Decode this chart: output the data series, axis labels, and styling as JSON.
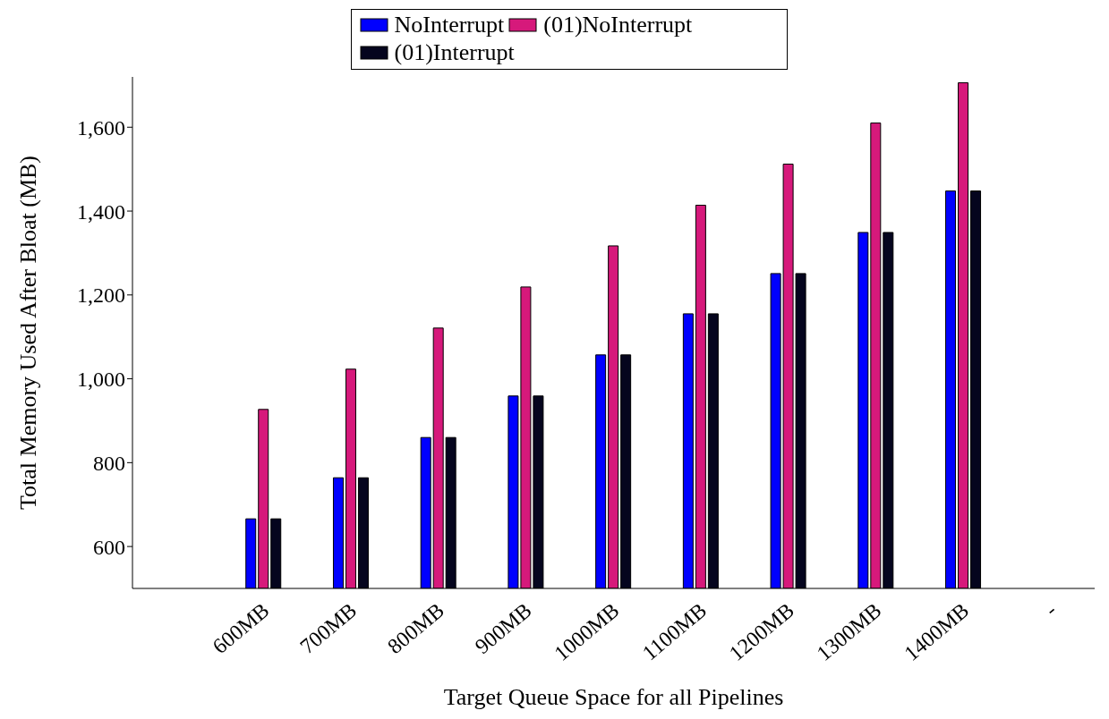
{
  "chart_data": {
    "type": "bar",
    "xlabel": "Target Queue Space for all Pipelines",
    "ylabel": "Total Memory Used After Bloat (MB)",
    "categories": [
      null,
      "600MB",
      "700MB",
      "800MB",
      "900MB",
      "1000MB",
      "1100MB",
      "1200MB",
      "1300MB",
      "1400MB",
      "-"
    ],
    "series": [
      {
        "name": "NoInterrupt",
        "color": "#0000ff",
        "values": [
          null,
          666,
          764,
          860,
          959,
          1057,
          1155,
          1251,
          1349,
          1448,
          null
        ]
      },
      {
        "name": "(01)NoInterrupt",
        "color": "#d6197b",
        "values": [
          null,
          927,
          1023,
          1121,
          1219,
          1317,
          1414,
          1512,
          1610,
          1706,
          null
        ]
      },
      {
        "name": "(01)Interrupt",
        "color": "#05051e",
        "values": [
          null,
          666,
          764,
          860,
          959,
          1057,
          1155,
          1251,
          1349,
          1448,
          null
        ]
      }
    ],
    "ylim": [
      500,
      1720
    ],
    "yticks": [
      600,
      800,
      {
        "value": 1000,
        "label": "1,000"
      },
      {
        "value": 1200,
        "label": "1,200"
      },
      {
        "value": 1400,
        "label": "1,400"
      },
      {
        "value": 1600,
        "label": "1,600"
      }
    ],
    "grid": false,
    "legend": "top"
  }
}
